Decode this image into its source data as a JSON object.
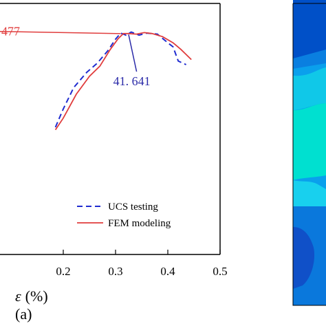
{
  "chart_data": {
    "type": "line",
    "xlabel_var": "ε",
    "xlabel_unit": "(%)",
    "panel_label": "(a)",
    "xlim": [
      0.0,
      0.5
    ],
    "ylim": [
      0,
      50
    ],
    "x_ticks": [
      {
        "value": 0.2,
        "label": "0.2"
      },
      {
        "value": 0.3,
        "label": "0.3"
      },
      {
        "value": 0.4,
        "label": "0.4"
      },
      {
        "value": 0.5,
        "label": "0.5"
      }
    ],
    "series": [
      {
        "name": "UCS testing",
        "color": "#1f2bd0",
        "style": "dashed",
        "x": [
          0.185,
          0.2,
          0.22,
          0.245,
          0.265,
          0.285,
          0.3,
          0.31,
          0.32,
          0.33,
          0.345,
          0.36,
          0.38,
          0.4,
          0.41,
          0.42,
          0.435
        ],
        "y": [
          25.0,
          28.6,
          32.8,
          35.8,
          37.6,
          40.0,
          42.3,
          43.5,
          43.1,
          43.7,
          43.1,
          43.5,
          43.3,
          41.6,
          40.8,
          38.0,
          37.3
        ]
      },
      {
        "name": "FEM modeling",
        "color": "#e03c3c",
        "style": "solid",
        "x": [
          0.185,
          0.2,
          0.225,
          0.25,
          0.27,
          0.29,
          0.305,
          0.315,
          0.325,
          0.34,
          0.355,
          0.37,
          0.39,
          0.41,
          0.425,
          0.445
        ],
        "y": [
          24.5,
          26.8,
          31.5,
          35.0,
          37.0,
          40.3,
          42.4,
          43.4,
          43.4,
          43.3,
          43.6,
          43.4,
          42.8,
          41.6,
          40.3,
          38.3
        ]
      }
    ],
    "annotations": [
      {
        "text": "477",
        "color": "#e03c3c",
        "label_pos": [
          0.02,
          43.3
        ],
        "arrow_to": [
          0.31,
          43.4
        ]
      },
      {
        "text": "41. 641",
        "color": "#2a2aa8",
        "label_pos": [
          0.335,
          33.5
        ],
        "arrow_to": [
          0.325,
          43.2
        ]
      }
    ],
    "legend": {
      "position": "lower-right"
    }
  },
  "fem_contour": {
    "band_colors": [
      "#0050c8",
      "#0a7fe0",
      "#0aa0ec",
      "#10c8e8",
      "#00e0d0",
      "#18d0ee",
      "#0a78dc",
      "#1050c8"
    ]
  }
}
